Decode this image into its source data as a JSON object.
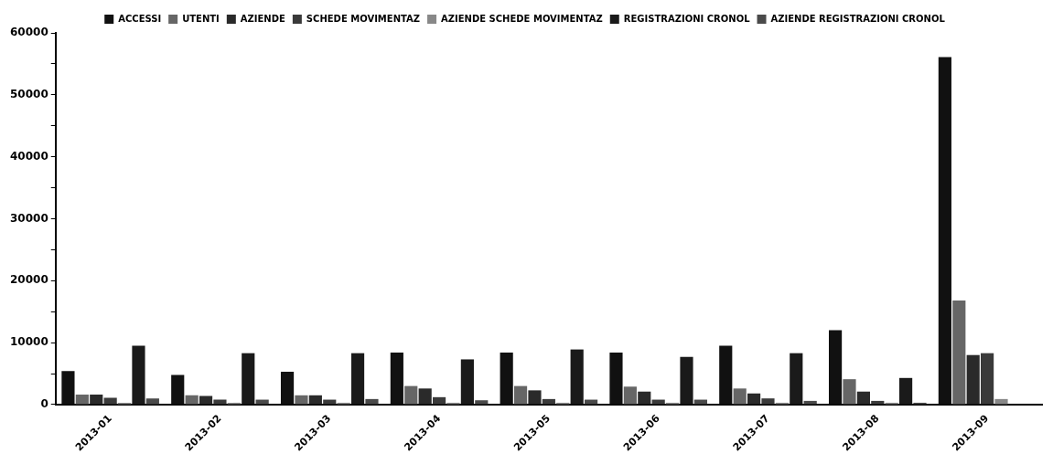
{
  "chart_data": {
    "type": "bar",
    "categories": [
      "2013-01",
      "2013-02",
      "2013-03",
      "2013-04",
      "2013-05",
      "2013-06",
      "2013-07",
      "2013-08",
      "2013-09"
    ],
    "series": [
      {
        "name": "ACCESSI",
        "color": "#111111",
        "values": [
          5400,
          4800,
          5300,
          8400,
          8400,
          8400,
          9500,
          12000,
          56100
        ]
      },
      {
        "name": "UTENTI",
        "color": "#666666",
        "values": [
          1600,
          1500,
          1500,
          3000,
          3000,
          2900,
          2600,
          4100,
          16800
        ]
      },
      {
        "name": "AZIENDE",
        "color": "#2a2a2a",
        "values": [
          1600,
          1400,
          1500,
          2600,
          2300,
          2100,
          1800,
          2100,
          8000
        ]
      },
      {
        "name": "SCHEDE MOVIMENTAZ",
        "color": "#3a3a3a",
        "values": [
          1100,
          800,
          800,
          1200,
          900,
          800,
          1000,
          600,
          8300
        ]
      },
      {
        "name": "AZIENDE SCHEDE MOVIMENTAZ",
        "color": "#888888",
        "values": [
          300,
          300,
          300,
          300,
          300,
          300,
          300,
          300,
          900
        ]
      },
      {
        "name": "REGISTRAZIONI CRONOL",
        "color": "#1a1a1a",
        "values": [
          9500,
          8300,
          8300,
          7300,
          8900,
          7700,
          8300,
          4300,
          null
        ]
      },
      {
        "name": "AZIENDE REGISTRAZIONI CRONOL",
        "color": "#4a4a4a",
        "values": [
          1000,
          800,
          900,
          700,
          800,
          800,
          600,
          300,
          null
        ]
      }
    ],
    "ylim": [
      0,
      60000
    ],
    "yticks": [
      0,
      {
        "value": 5000,
        "label": null
      },
      10000,
      {
        "value": 15000,
        "label": null
      },
      20000,
      {
        "value": 25000,
        "label": null
      },
      30000,
      {
        "value": 35000,
        "label": null
      },
      40000,
      {
        "value": 45000,
        "label": null
      },
      50000,
      {
        "value": 55000,
        "label": null
      },
      60000
    ],
    "grid": false,
    "legend": "top"
  }
}
